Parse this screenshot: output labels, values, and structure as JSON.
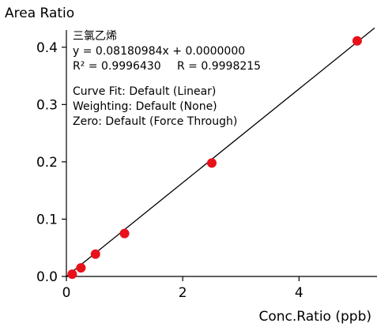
{
  "chart_data": {
    "type": "scatter",
    "title": "",
    "ylabel": "Area Ratio",
    "xlabel": "Conc.Ratio (ppb)",
    "xlim": [
      0,
      5.3
    ],
    "ylim": [
      0,
      0.43
    ],
    "x_ticks": [
      {
        "value": 0,
        "label": "0"
      },
      {
        "value": 2,
        "label": "2"
      },
      {
        "value": 4,
        "label": "4"
      }
    ],
    "y_ticks": [
      {
        "value": 0.0,
        "label": "0.0"
      },
      {
        "value": 0.1,
        "label": "0.1"
      },
      {
        "value": 0.2,
        "label": "0.2"
      },
      {
        "value": 0.3,
        "label": "0.3"
      },
      {
        "value": 0.4,
        "label": "0.4"
      }
    ],
    "series": [
      {
        "points": [
          {
            "x": 0.1,
            "y": 0.004
          },
          {
            "x": 0.25,
            "y": 0.015
          },
          {
            "x": 0.5,
            "y": 0.039
          },
          {
            "x": 1.0,
            "y": 0.075
          },
          {
            "x": 2.5,
            "y": 0.198
          },
          {
            "x": 5.0,
            "y": 0.411
          }
        ]
      }
    ],
    "fit_line": {
      "slope": 0.08180984,
      "intercept": 0.0,
      "x_range": [
        0,
        5.3
      ]
    },
    "annotation": {
      "compound": "三氯乙烯",
      "equation": "y = 0.08180984x + 0.0000000",
      "r2_label": "R² = 0.9996430",
      "r_label": "R = 0.9998215",
      "curve_fit": "Curve Fit: Default (Linear)",
      "weighting": "Weighting: Default (None)",
      "zero": "Zero: Default (Force Through)"
    },
    "grid": false,
    "legend": "none",
    "colors": {
      "point": "#e8111a",
      "line": "#000000",
      "axis": "#000000"
    }
  }
}
